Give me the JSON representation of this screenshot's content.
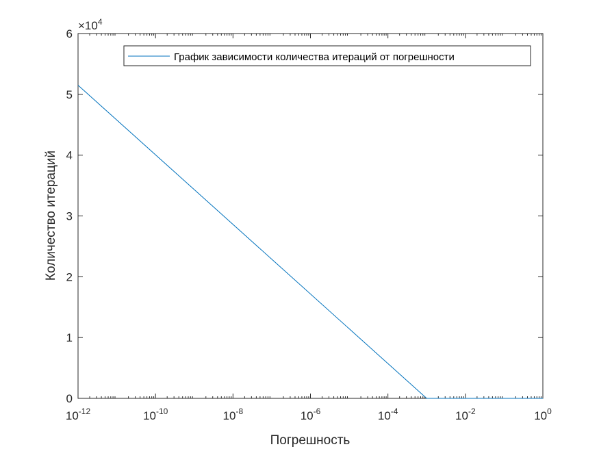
{
  "chart_data": {
    "type": "line",
    "xscale": "log",
    "xlabel": "Погрешность",
    "ylabel": "Количество итераций",
    "xlim": [
      1e-12,
      1
    ],
    "ylim": [
      0,
      60000
    ],
    "x_ticks": [
      {
        "base": "10",
        "exp": "-12",
        "value": 1e-12
      },
      {
        "base": "10",
        "exp": "-10",
        "value": 1e-10
      },
      {
        "base": "10",
        "exp": "-8",
        "value": 1e-08
      },
      {
        "base": "10",
        "exp": "-6",
        "value": 1e-06
      },
      {
        "base": "10",
        "exp": "-4",
        "value": 0.0001
      },
      {
        "base": "10",
        "exp": "-2",
        "value": 0.01
      },
      {
        "base": "10",
        "exp": "0",
        "value": 1
      }
    ],
    "y_ticks": [
      {
        "label": "0",
        "value": 0
      },
      {
        "label": "1",
        "value": 10000
      },
      {
        "label": "2",
        "value": 20000
      },
      {
        "label": "3",
        "value": 30000
      },
      {
        "label": "4",
        "value": 40000
      },
      {
        "label": "5",
        "value": 50000
      },
      {
        "label": "6",
        "value": 60000
      }
    ],
    "y_multiplier": {
      "base": "×10",
      "exp": "4"
    },
    "grid": false,
    "legend_position": "top-right",
    "series": [
      {
        "name": "График зависимости количества итераций от погрешности",
        "color": "#0072BD",
        "x": [
          1e-12,
          0.001,
          0.01,
          0.1,
          1
        ],
        "y": [
          51500,
          0,
          0,
          0,
          0
        ]
      }
    ]
  }
}
